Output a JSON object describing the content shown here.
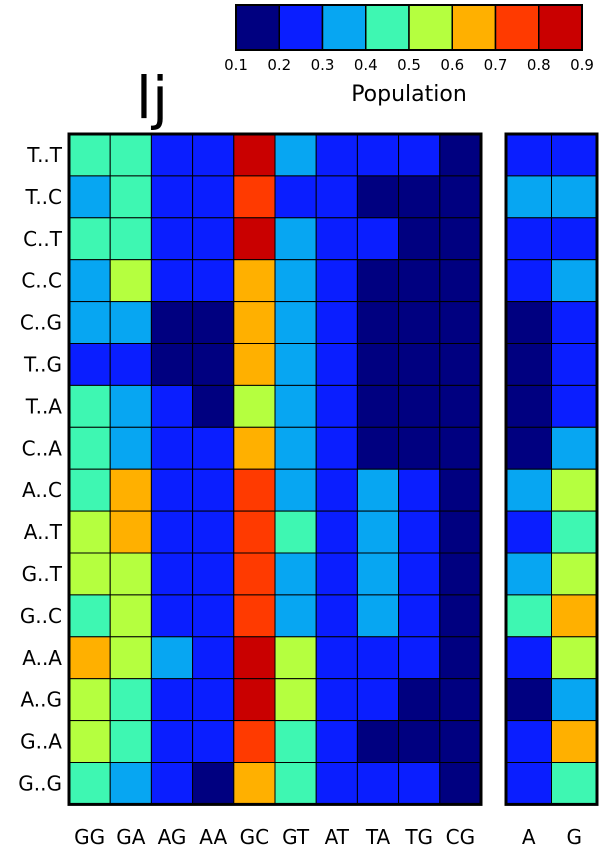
{
  "chart_data": {
    "type": "heatmap",
    "title": "lj",
    "colorbar": {
      "label": "Population",
      "ticks": [
        "0.1",
        "0.2",
        "0.3",
        "0.4",
        "0.5",
        "0.6",
        "0.7",
        "0.8",
        "0.9"
      ],
      "range": [
        0.1,
        0.9
      ],
      "bins": [
        {
          "min": 0.1,
          "max": 0.2,
          "color": "#000080"
        },
        {
          "min": 0.2,
          "max": 0.3,
          "color": "#0a1eff"
        },
        {
          "min": 0.3,
          "max": 0.4,
          "color": "#07a6f2"
        },
        {
          "min": 0.4,
          "max": 0.5,
          "color": "#3ef7b2"
        },
        {
          "min": 0.5,
          "max": 0.6,
          "color": "#b5ff3f"
        },
        {
          "min": 0.6,
          "max": 0.7,
          "color": "#ffb000"
        },
        {
          "min": 0.7,
          "max": 0.8,
          "color": "#ff3a00"
        },
        {
          "min": 0.8,
          "max": 0.9,
          "color": "#c90000"
        }
      ]
    },
    "rows": [
      "T..T",
      "T..C",
      "C..T",
      "C..C",
      "C..G",
      "T..G",
      "T..A",
      "C..A",
      "A..C",
      "A..T",
      "G..T",
      "G..C",
      "A..A",
      "A..G",
      "G..A",
      "G..G"
    ],
    "panels": [
      {
        "columns": [
          "GG",
          "GA",
          "AG",
          "AA",
          "GC",
          "GT",
          "AT",
          "TA",
          "TG",
          "CG"
        ],
        "values": [
          [
            0.45,
            0.45,
            0.25,
            0.25,
            0.85,
            0.35,
            0.25,
            0.25,
            0.25,
            0.15
          ],
          [
            0.35,
            0.45,
            0.25,
            0.25,
            0.75,
            0.25,
            0.25,
            0.15,
            0.15,
            0.15
          ],
          [
            0.45,
            0.45,
            0.25,
            0.25,
            0.85,
            0.35,
            0.25,
            0.25,
            0.15,
            0.15
          ],
          [
            0.35,
            0.55,
            0.25,
            0.25,
            0.65,
            0.35,
            0.25,
            0.15,
            0.15,
            0.15
          ],
          [
            0.35,
            0.35,
            0.15,
            0.15,
            0.65,
            0.35,
            0.25,
            0.15,
            0.15,
            0.15
          ],
          [
            0.25,
            0.25,
            0.15,
            0.15,
            0.65,
            0.35,
            0.25,
            0.15,
            0.15,
            0.15
          ],
          [
            0.45,
            0.35,
            0.25,
            0.15,
            0.55,
            0.35,
            0.25,
            0.15,
            0.15,
            0.15
          ],
          [
            0.45,
            0.35,
            0.25,
            0.25,
            0.65,
            0.35,
            0.25,
            0.15,
            0.15,
            0.15
          ],
          [
            0.45,
            0.65,
            0.25,
            0.25,
            0.75,
            0.35,
            0.25,
            0.35,
            0.25,
            0.15
          ],
          [
            0.55,
            0.65,
            0.25,
            0.25,
            0.75,
            0.45,
            0.25,
            0.35,
            0.25,
            0.15
          ],
          [
            0.55,
            0.55,
            0.25,
            0.25,
            0.75,
            0.35,
            0.25,
            0.35,
            0.25,
            0.15
          ],
          [
            0.45,
            0.55,
            0.25,
            0.25,
            0.75,
            0.35,
            0.25,
            0.35,
            0.25,
            0.15
          ],
          [
            0.65,
            0.55,
            0.35,
            0.25,
            0.85,
            0.55,
            0.25,
            0.25,
            0.25,
            0.15
          ],
          [
            0.55,
            0.45,
            0.25,
            0.25,
            0.85,
            0.55,
            0.25,
            0.25,
            0.15,
            0.15
          ],
          [
            0.55,
            0.45,
            0.25,
            0.25,
            0.75,
            0.45,
            0.25,
            0.15,
            0.15,
            0.15
          ],
          [
            0.45,
            0.35,
            0.25,
            0.15,
            0.65,
            0.45,
            0.25,
            0.25,
            0.25,
            0.15
          ]
        ]
      },
      {
        "columns": [
          "A",
          "G"
        ],
        "values": [
          [
            0.25,
            0.25
          ],
          [
            0.35,
            0.35
          ],
          [
            0.25,
            0.25
          ],
          [
            0.25,
            0.35
          ],
          [
            0.15,
            0.25
          ],
          [
            0.15,
            0.25
          ],
          [
            0.15,
            0.25
          ],
          [
            0.15,
            0.35
          ],
          [
            0.35,
            0.55
          ],
          [
            0.25,
            0.45
          ],
          [
            0.35,
            0.55
          ],
          [
            0.45,
            0.65
          ],
          [
            0.25,
            0.55
          ],
          [
            0.15,
            0.35
          ],
          [
            0.25,
            0.65
          ],
          [
            0.25,
            0.45
          ]
        ]
      }
    ]
  }
}
